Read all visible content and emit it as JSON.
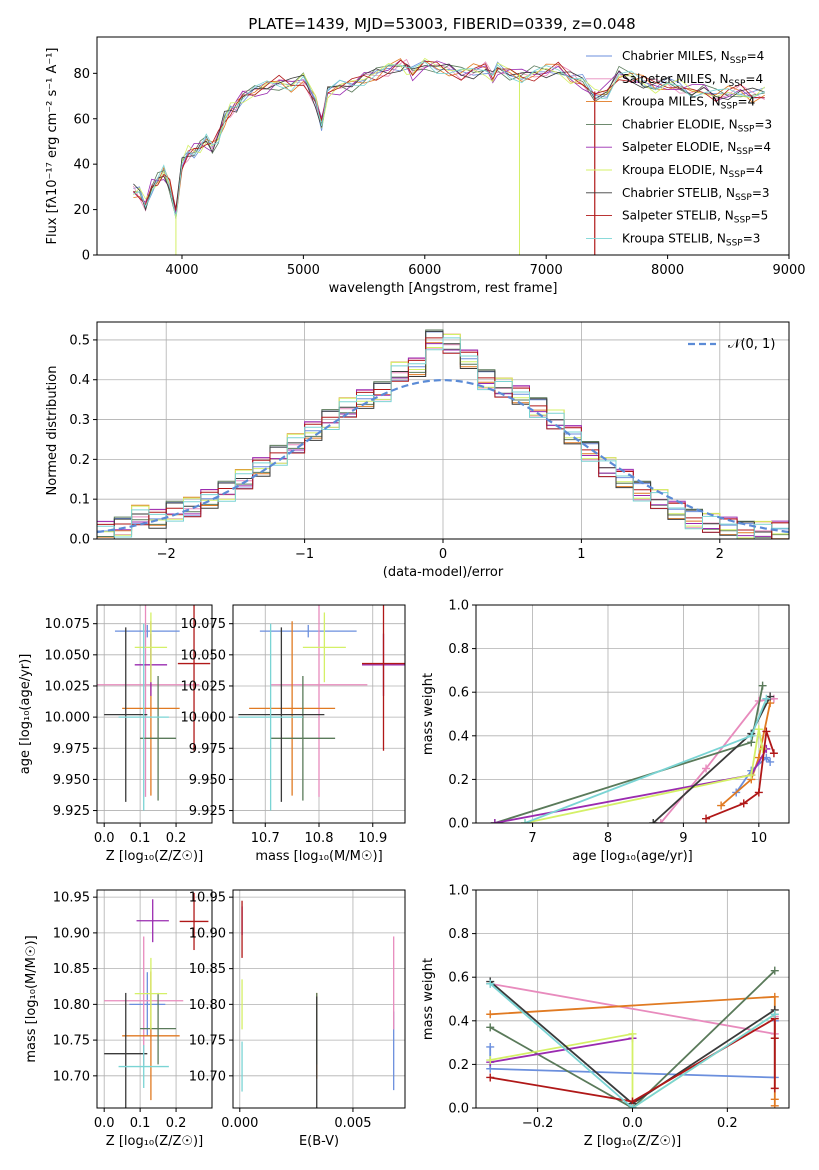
{
  "title": "PLATE=1439, MJD=53003, FIBERID=0339, z=0.048",
  "colors": {
    "chabrier_miles": "#6b8fdd",
    "salpeter_miles": "#e88bbd",
    "kroupa_miles": "#e07a22",
    "chabrier_elodie": "#5a7a5a",
    "salpeter_elodie": "#9a2bb0",
    "kroupa_elodie": "#d4f067",
    "chabrier_stelib": "#3a3a3a",
    "salpeter_stelib": "#b01818",
    "kroupa_stelib": "#7ad4d4"
  },
  "chart_data": [
    {
      "type": "line",
      "xlabel": "wavelength [Angstrom, rest frame]",
      "ylabel": "Flux [f_λ 10^-17 erg cm^-2 s^-1 A^-1]",
      "xlim": [
        3300,
        9000
      ],
      "ylim": [
        0,
        96
      ],
      "xticks": [
        4000,
        5000,
        6000,
        7000,
        8000,
        9000
      ],
      "yticks": [
        0,
        20,
        40,
        60,
        80
      ],
      "grid": false,
      "legend_position": "top-right",
      "x": [
        3600,
        3650,
        3700,
        3750,
        3800,
        3850,
        3900,
        3950,
        4000,
        4050,
        4100,
        4150,
        4200,
        4250,
        4300,
        4350,
        4400,
        4450,
        4500,
        4600,
        4700,
        4800,
        4900,
        5000,
        5100,
        5150,
        5200,
        5300,
        5400,
        5500,
        5600,
        5700,
        5800,
        5850,
        5900,
        6000,
        6100,
        6200,
        6300,
        6400,
        6500,
        6560,
        6600,
        6700,
        6800,
        6900,
        7000,
        7100,
        7200,
        7300,
        7400,
        7500,
        7600,
        7700,
        7800,
        7900,
        8000,
        8100,
        8200,
        8300,
        8400,
        8500,
        8600,
        8700,
        8800
      ],
      "y": [
        28,
        27,
        22,
        30,
        33,
        36,
        30,
        18,
        40,
        45,
        46,
        48,
        50,
        47,
        52,
        60,
        64,
        66,
        70,
        72,
        74,
        76,
        75,
        78,
        68,
        58,
        72,
        74,
        75,
        78,
        80,
        82,
        84,
        83,
        80,
        84,
        83,
        82,
        80,
        81,
        82,
        78,
        82,
        80,
        79,
        80,
        81,
        82,
        78,
        76,
        70,
        72,
        80,
        78,
        76,
        74,
        75,
        74,
        72,
        73,
        70,
        71,
        72,
        70,
        71
      ],
      "series": [
        {
          "name": "Chabrier MILES, N_SSP=4"
        },
        {
          "name": "Salpeter MILES, N_SSP=4"
        },
        {
          "name": "Kroupa MILES, N_SSP=4"
        },
        {
          "name": "Chabrier ELODIE, N_SSP=3"
        },
        {
          "name": "Salpeter ELODIE, N_SSP=4"
        },
        {
          "name": "Kroupa ELODIE, N_SSP=4"
        },
        {
          "name": "Chabrier STELIB, N_SSP=3"
        },
        {
          "name": "Salpeter STELIB, N_SSP=5"
        },
        {
          "name": "Kroupa STELIB, N_SSP=3"
        }
      ]
    },
    {
      "type": "line",
      "xlabel": "(data-model)/error",
      "ylabel": "Normed distribution",
      "xlim": [
        -2.5,
        2.5
      ],
      "ylim": [
        0,
        0.545
      ],
      "xticks": [
        -2,
        -1,
        0,
        1,
        2
      ],
      "yticks": [
        0.0,
        0.1,
        0.2,
        0.3,
        0.4,
        0.5
      ],
      "grid": true,
      "legend_position": "top-right",
      "legend": "N(0,1)",
      "series": [
        {
          "name": "N(0,1)",
          "values": "gaussian mean 0 sigma 1"
        },
        {
          "values": [
            0.02,
            0.03,
            0.06,
            0.05,
            0.07,
            0.08,
            0.1,
            0.12,
            0.15,
            0.18,
            0.21,
            0.24,
            0.27,
            0.3,
            0.33,
            0.35,
            0.37,
            0.42,
            0.43,
            0.5,
            0.49,
            0.45,
            0.4,
            0.38,
            0.36,
            0.33,
            0.3,
            0.26,
            0.22,
            0.18,
            0.15,
            0.12,
            0.1,
            0.07,
            0.05,
            0.04,
            0.03,
            0.02,
            0.02,
            0.02
          ]
        }
      ]
    },
    {
      "type": "scatter",
      "xlabel": "Z [log10(Z/Z_sun)]",
      "ylabel": "age [log10(age/yr)]",
      "xlim": [
        -0.02,
        0.3
      ],
      "ylim": [
        9.915,
        10.09
      ],
      "xticks": [
        0.0,
        0.1,
        0.2
      ],
      "yticks": [
        9.925,
        9.95,
        9.975,
        10.0,
        10.025,
        10.05,
        10.075
      ],
      "grid": true,
      "points": [
        {
          "x": 0.12,
          "y": 10.069,
          "xerr": 0.09,
          "yerr": 0.005
        },
        {
          "x": 0.115,
          "y": 10.026,
          "xerr": 0.15,
          "yerr": 0.09
        },
        {
          "x": 0.13,
          "y": 10.007,
          "xerr": 0.08,
          "yerr": 0.07
        },
        {
          "x": 0.15,
          "y": 9.983,
          "xerr": 0.05,
          "yerr": 0.05
        },
        {
          "x": 0.13,
          "y": 10.042,
          "xerr": 0.045,
          "yerr": 0.025
        },
        {
          "x": 0.13,
          "y": 10.056,
          "xerr": 0.045,
          "yerr": 0.028
        },
        {
          "x": 0.06,
          "y": 10.002,
          "xerr": 0.06,
          "yerr": 0.07
        },
        {
          "x": 0.25,
          "y": 10.043,
          "xerr": 0.045,
          "yerr": 0.07
        },
        {
          "x": 0.11,
          "y": 10.0,
          "xerr": 0.07,
          "yerr": 0.075
        }
      ]
    },
    {
      "type": "scatter",
      "xlabel": "mass [log10(M/M_sun)]",
      "ylabel": "",
      "xlim": [
        10.64,
        10.96
      ],
      "ylim": [
        9.915,
        10.09
      ],
      "xticks": [
        10.7,
        10.8,
        10.9
      ],
      "yticks": [
        9.925,
        9.95,
        9.975,
        10.0,
        10.025,
        10.05,
        10.075
      ],
      "grid": true,
      "points": [
        {
          "x": 10.78,
          "y": 10.069,
          "xerr": 0.09,
          "yerr": 0.005
        },
        {
          "x": 10.8,
          "y": 10.026,
          "xerr": 0.09,
          "yerr": 0.09
        },
        {
          "x": 10.75,
          "y": 10.007,
          "xerr": 0.08,
          "yerr": 0.07
        },
        {
          "x": 10.77,
          "y": 9.983,
          "xerr": 0.06,
          "yerr": 0.05
        },
        {
          "x": 10.92,
          "y": 10.042,
          "xerr": 0.04,
          "yerr": 0.025
        },
        {
          "x": 10.81,
          "y": 10.056,
          "xerr": 0.04,
          "yerr": 0.028
        },
        {
          "x": 10.73,
          "y": 10.002,
          "xerr": 0.08,
          "yerr": 0.07
        },
        {
          "x": 10.92,
          "y": 10.043,
          "xerr": 0.04,
          "yerr": 0.07
        },
        {
          "x": 10.71,
          "y": 10.0,
          "xerr": 0.06,
          "yerr": 0.075
        }
      ]
    },
    {
      "type": "line",
      "xlabel": "age [log10(age/yr)]",
      "ylabel": "mass weight",
      "xlim": [
        6.25,
        10.4
      ],
      "ylim": [
        0.0,
        1.0
      ],
      "xticks": [
        7,
        8,
        9,
        10
      ],
      "yticks": [
        0.0,
        0.2,
        0.4,
        0.6,
        0.8,
        1.0
      ],
      "grid": true,
      "series": [
        {
          "x": [
            9.7,
            9.9,
            10.1,
            10.15
          ],
          "y": [
            0.14,
            0.24,
            0.3,
            0.28
          ]
        },
        {
          "x": [
            8.7,
            9.3,
            10.0,
            10.2
          ],
          "y": [
            0.0,
            0.25,
            0.56,
            0.57
          ]
        },
        {
          "x": [
            9.5,
            9.9,
            10.0,
            10.15
          ],
          "y": [
            0.08,
            0.2,
            0.3,
            0.55
          ]
        },
        {
          "x": [
            6.5,
            9.9,
            10.05
          ],
          "y": [
            0.0,
            0.37,
            0.63
          ]
        },
        {
          "x": [
            6.5,
            9.9,
            10.1
          ],
          "y": [
            0.0,
            0.22,
            0.34
          ]
        },
        {
          "x": [
            6.9,
            9.9,
            10.0,
            10.05
          ],
          "y": [
            0.0,
            0.22,
            0.43,
            0.34
          ]
        },
        {
          "x": [
            8.6,
            9.9,
            10.15
          ],
          "y": [
            0.0,
            0.41,
            0.58
          ]
        },
        {
          "x": [
            9.3,
            9.8,
            10.0,
            10.1,
            10.2
          ],
          "y": [
            0.02,
            0.09,
            0.14,
            0.42,
            0.32
          ]
        },
        {
          "x": [
            6.9,
            9.9,
            10.1
          ],
          "y": [
            0.0,
            0.4,
            0.57
          ]
        }
      ]
    },
    {
      "type": "scatter",
      "xlabel": "Z [log10(Z/Z_sun)]",
      "ylabel": "mass [log10(M/M_sun)]",
      "xlim": [
        -0.02,
        0.3
      ],
      "ylim": [
        10.655,
        10.96
      ],
      "xticks": [
        0.0,
        0.1,
        0.2
      ],
      "yticks": [
        10.7,
        10.75,
        10.8,
        10.85,
        10.9,
        10.95
      ],
      "grid": true,
      "points": [
        {
          "x": 0.12,
          "y": 10.8,
          "xerr": 0.05,
          "yerr": 0.045
        },
        {
          "x": 0.11,
          "y": 10.805,
          "xerr": 0.11,
          "yerr": 0.09
        },
        {
          "x": 0.13,
          "y": 10.756,
          "xerr": 0.08,
          "yerr": 0.09
        },
        {
          "x": 0.15,
          "y": 10.766,
          "xerr": 0.05,
          "yerr": 0.05
        },
        {
          "x": 0.135,
          "y": 10.917,
          "xerr": 0.045,
          "yerr": 0.03
        },
        {
          "x": 0.13,
          "y": 10.815,
          "xerr": 0.045,
          "yerr": 0.05
        },
        {
          "x": 0.06,
          "y": 10.731,
          "xerr": 0.06,
          "yerr": 0.085
        },
        {
          "x": 0.25,
          "y": 10.916,
          "xerr": 0.04,
          "yerr": 0.04
        },
        {
          "x": 0.11,
          "y": 10.713,
          "xerr": 0.07,
          "yerr": 0.03
        }
      ]
    },
    {
      "type": "scatter",
      "xlabel": "E(B-V)",
      "ylabel": "",
      "xlim": [
        -0.0003,
        0.0073
      ],
      "ylim": [
        10.655,
        10.96
      ],
      "xticks": [
        0.0,
        0.005
      ],
      "yticks": [
        10.7,
        10.75,
        10.8,
        10.85,
        10.9,
        10.95
      ],
      "grid": true,
      "points": [
        {
          "x": 0.0068,
          "y": 10.735,
          "yerr": 0.055
        },
        {
          "x": 0.0068,
          "y": 10.83,
          "yerr": 0.065
        },
        {
          "x": 0.0034,
          "y": 10.756,
          "yerr": 0.06
        },
        {
          "x": 0.0034,
          "y": 10.766,
          "yerr": 0.05
        },
        {
          "x": 0.0001,
          "y": 10.917,
          "yerr": 0.02
        },
        {
          "x": 0.0001,
          "y": 10.8,
          "yerr": 0.035
        },
        {
          "x": 0.0034,
          "y": 10.731,
          "yerr": 0.08
        },
        {
          "x": 0.0001,
          "y": 10.905,
          "yerr": 0.04
        },
        {
          "x": 0.0001,
          "y": 10.713,
          "yerr": 0.035
        }
      ]
    },
    {
      "type": "line",
      "xlabel": "Z [log10(Z/Z_sun)]",
      "ylabel": "mass weight",
      "xlim": [
        -0.33,
        0.33
      ],
      "ylim": [
        0.0,
        1.0
      ],
      "xticks": [
        -0.2,
        0.0,
        0.2
      ],
      "yticks": [
        0.0,
        0.2,
        0.4,
        0.6,
        0.8,
        1.0
      ],
      "grid": true,
      "series": [
        {
          "x": [
            -0.3,
            -0.3,
            0.3,
            0.3
          ],
          "y": [
            0.28,
            0.18,
            0.14,
            0.4
          ]
        },
        {
          "x": [
            -0.3,
            0.3,
            0.3
          ],
          "y": [
            0.57,
            0.34,
            0.42
          ]
        },
        {
          "x": [
            -0.3,
            0.3,
            0.3,
            0.3
          ],
          "y": [
            0.43,
            0.51,
            0.04,
            0.01
          ]
        },
        {
          "x": [
            -0.3,
            0.0,
            0.3
          ],
          "y": [
            0.37,
            0.0,
            0.63
          ]
        },
        {
          "x": [
            -0.3,
            0.0
          ],
          "y": [
            0.21,
            0.32
          ]
        },
        {
          "x": [
            -0.3,
            0.0,
            0.0,
            0.3
          ],
          "y": [
            0.22,
            0.34,
            0.0,
            0.43
          ]
        },
        {
          "x": [
            -0.3,
            0.0,
            0.3
          ],
          "y": [
            0.58,
            0.02,
            0.45
          ]
        },
        {
          "x": [
            -0.3,
            0.0,
            0.3,
            0.3,
            0.3
          ],
          "y": [
            0.14,
            0.03,
            0.41,
            0.32,
            0.09
          ]
        },
        {
          "x": [
            -0.3,
            0.0,
            0.3
          ],
          "y": [
            0.57,
            0.0,
            0.43
          ]
        }
      ]
    }
  ]
}
